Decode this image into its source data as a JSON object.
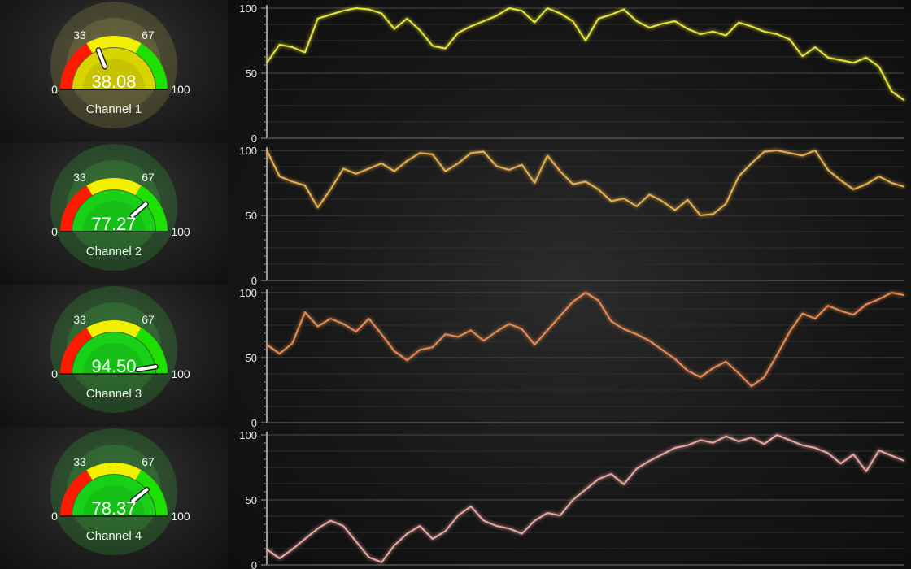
{
  "channels": [
    {
      "label": "Channel 1",
      "value": "38.08",
      "reading": 38.08,
      "color": "#e8e43a",
      "zone": "yellow"
    },
    {
      "label": "Channel 2",
      "value": "77.27",
      "reading": 77.27,
      "color": "#e6b04f",
      "zone": "green"
    },
    {
      "label": "Channel 3",
      "value": "94.50",
      "reading": 94.5,
      "color": "#e58b52",
      "zone": "green"
    },
    {
      "label": "Channel 4",
      "value": "78.37",
      "reading": 78.37,
      "color": "#e8a8a0",
      "zone": "green"
    }
  ],
  "gauge": {
    "min_label": "0",
    "low_label": "33",
    "high_label": "67",
    "max_label": "100",
    "range": [
      0,
      100
    ],
    "thresholds": [
      33,
      67
    ],
    "zone_colors": {
      "red": "#ff1a00",
      "yellow": "#f2f000",
      "green": "#1ee000"
    }
  },
  "chart_data": [
    {
      "type": "line",
      "name": "Channel 1",
      "ylim": [
        0,
        100
      ],
      "yticks": [
        "0",
        "50",
        "100"
      ],
      "grid": true,
      "color": "#e8e43a",
      "x": [
        0,
        2,
        4,
        6,
        8,
        10,
        12,
        14,
        16,
        18,
        20,
        22,
        24,
        26,
        28,
        30,
        32,
        34,
        36,
        38,
        40,
        42,
        44,
        46,
        48,
        50,
        52,
        54,
        56,
        58,
        60,
        62,
        64,
        66,
        68,
        70,
        72,
        74,
        76,
        78,
        80,
        82,
        84,
        86,
        88,
        90,
        92,
        94,
        96,
        98,
        100
      ],
      "values": [
        58,
        72,
        70,
        66,
        92,
        95,
        98,
        100,
        99,
        96,
        84,
        92,
        83,
        71,
        69,
        81,
        86,
        90,
        94,
        100,
        98,
        89,
        100,
        96,
        90,
        75,
        92,
        95,
        99,
        90,
        85,
        88,
        90,
        84,
        80,
        82,
        79,
        89,
        86,
        82,
        80,
        76,
        63,
        70,
        62,
        60,
        58,
        62,
        55,
        36,
        29
      ]
    },
    {
      "type": "line",
      "name": "Channel 2",
      "ylim": [
        0,
        100
      ],
      "yticks": [
        "0",
        "50",
        "100"
      ],
      "grid": true,
      "color": "#e6b04f",
      "x": [
        0,
        2,
        4,
        6,
        8,
        10,
        12,
        14,
        16,
        18,
        20,
        22,
        24,
        26,
        28,
        30,
        32,
        34,
        36,
        38,
        40,
        42,
        44,
        46,
        48,
        50,
        52,
        54,
        56,
        58,
        60,
        62,
        64,
        66,
        68,
        70,
        72,
        74,
        76,
        78,
        80,
        82,
        84,
        86,
        88,
        90,
        92,
        94,
        96,
        98,
        100
      ],
      "values": [
        100,
        80,
        76,
        73,
        56,
        70,
        86,
        82,
        86,
        90,
        84,
        92,
        98,
        97,
        84,
        90,
        98,
        99,
        88,
        85,
        89,
        75,
        96,
        84,
        74,
        76,
        70,
        61,
        63,
        57,
        66,
        61,
        54,
        62,
        50,
        51,
        59,
        80,
        90,
        99,
        100,
        98,
        96,
        100,
        85,
        77,
        70,
        74,
        80,
        75,
        72
      ]
    },
    {
      "type": "line",
      "name": "Channel 3",
      "ylim": [
        0,
        100
      ],
      "yticks": [
        "0",
        "50",
        "100"
      ],
      "grid": true,
      "color": "#e58b52",
      "x": [
        0,
        2,
        4,
        6,
        8,
        10,
        12,
        14,
        16,
        18,
        20,
        22,
        24,
        26,
        28,
        30,
        32,
        34,
        36,
        38,
        40,
        42,
        44,
        46,
        48,
        50,
        52,
        54,
        56,
        58,
        60,
        62,
        64,
        66,
        68,
        70,
        72,
        74,
        76,
        78,
        80,
        82,
        84,
        86,
        88,
        90,
        92,
        94,
        96,
        98,
        100
      ],
      "values": [
        60,
        53,
        61,
        85,
        74,
        80,
        76,
        70,
        80,
        68,
        55,
        48,
        56,
        58,
        68,
        66,
        71,
        63,
        70,
        76,
        72,
        60,
        71,
        82,
        93,
        100,
        94,
        78,
        72,
        68,
        63,
        56,
        49,
        40,
        35,
        42,
        47,
        38,
        28,
        35,
        52,
        70,
        84,
        80,
        90,
        86,
        83,
        91,
        95,
        100,
        98
      ]
    },
    {
      "type": "line",
      "name": "Channel 4",
      "ylim": [
        0,
        100
      ],
      "yticks": [
        "0",
        "50",
        "100"
      ],
      "grid": true,
      "color": "#e8a8a0",
      "x": [
        0,
        2,
        4,
        6,
        8,
        10,
        12,
        14,
        16,
        18,
        20,
        22,
        24,
        26,
        28,
        30,
        32,
        34,
        36,
        38,
        40,
        42,
        44,
        46,
        48,
        50,
        52,
        54,
        56,
        58,
        60,
        62,
        64,
        66,
        68,
        70,
        72,
        74,
        76,
        78,
        80,
        82,
        84,
        86,
        88,
        90,
        92,
        94,
        96,
        98,
        100
      ],
      "values": [
        12,
        5,
        12,
        20,
        28,
        34,
        30,
        18,
        6,
        2,
        15,
        24,
        30,
        20,
        26,
        38,
        45,
        34,
        30,
        28,
        24,
        34,
        40,
        38,
        50,
        58,
        66,
        70,
        62,
        74,
        80,
        85,
        90,
        92,
        96,
        94,
        99,
        95,
        98,
        93,
        100,
        96,
        92,
        90,
        86,
        78,
        85,
        72,
        88,
        84,
        80
      ]
    }
  ]
}
